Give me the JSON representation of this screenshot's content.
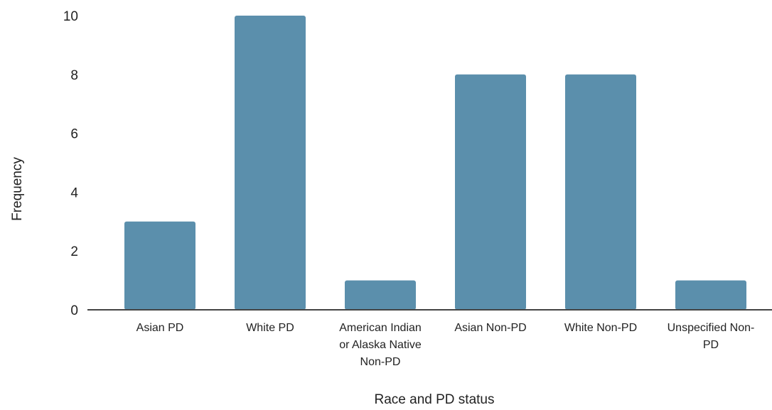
{
  "chart_data": {
    "type": "bar",
    "categories": [
      [
        "Asian PD"
      ],
      [
        "White PD"
      ],
      [
        "American Indian",
        "or Alaska Native",
        "Non-PD"
      ],
      [
        "Asian Non-PD"
      ],
      [
        "White Non-PD"
      ],
      [
        "Unspecified Non-",
        "PD"
      ]
    ],
    "values": [
      3,
      10,
      1,
      8,
      8,
      1
    ],
    "xlabel": "Race and PD status",
    "ylabel": "Frequency",
    "ylim": [
      0,
      10
    ],
    "yticks": [
      0,
      2,
      4,
      6,
      8,
      10
    ],
    "grid": false,
    "legend": "none",
    "bar_color": "#5b8fac",
    "axis_color": "#444444"
  }
}
